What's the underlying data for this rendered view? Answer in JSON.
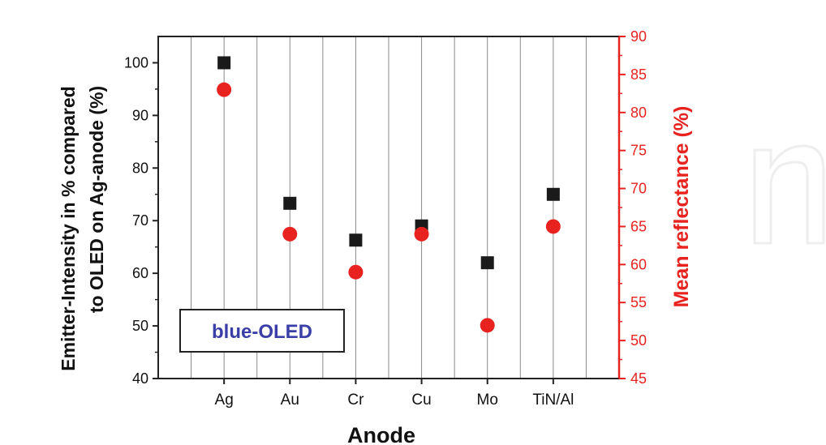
{
  "chart_data": {
    "type": "scatter",
    "categories": [
      "Ag",
      "Au",
      "Cr",
      "Cu",
      "Mo",
      "TiN/Al"
    ],
    "xlabel": "Anode",
    "ylabel_left": "Emitter-Intensity in % compared to OLED on Ag-anode (%)",
    "ylabel_left_lines": [
      "Emitter-Intensity in % compared",
      "to OLED on Ag-anode (%)"
    ],
    "ylabel_right": "Mean reflectance (%)",
    "ylim_left": [
      40,
      105
    ],
    "ylim_right": [
      45,
      90
    ],
    "yticks_left": [
      40,
      50,
      60,
      70,
      80,
      90,
      100
    ],
    "yticks_right": [
      45,
      50,
      55,
      60,
      65,
      70,
      75,
      80,
      85,
      90
    ],
    "series": [
      {
        "axis": "left",
        "marker": "square",
        "color": "#1a1a1a",
        "values": [
          100,
          73.3,
          66.3,
          69,
          62,
          75
        ]
      },
      {
        "axis": "right",
        "marker": "circle",
        "color": "#e8231f",
        "values": [
          83,
          64,
          59,
          64,
          52,
          65
        ]
      }
    ],
    "annotation": "blue-OLED",
    "annotation_color": "#3a3fa8",
    "right_axis_color": "#e8231f",
    "grid": "vertical"
  }
}
